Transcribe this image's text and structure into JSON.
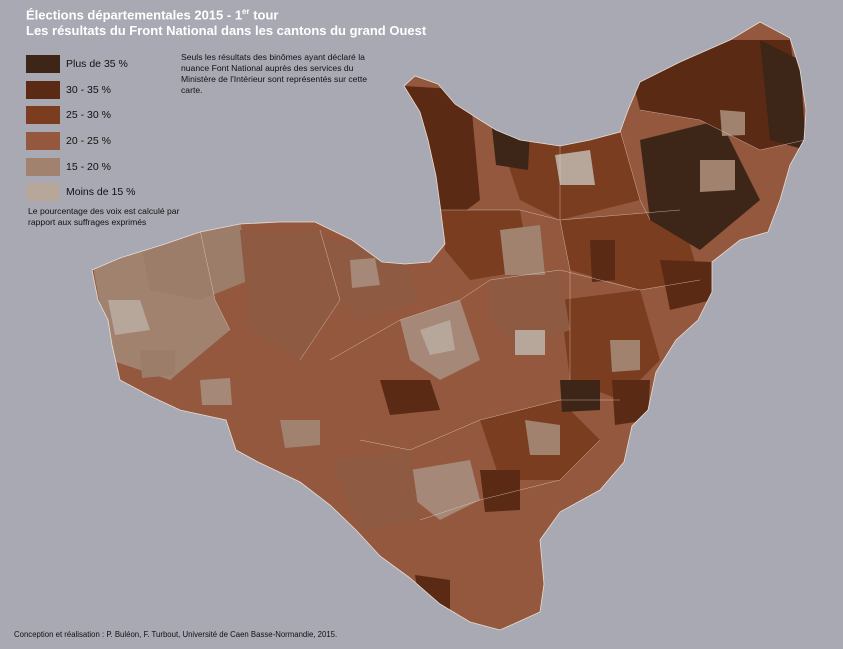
{
  "title": {
    "line1_prefix": "Élections départementales 2015 - 1",
    "line1_sup": "er",
    "line1_suffix": " tour",
    "line2": "Les résultats du Front National dans les cantons du grand Ouest"
  },
  "legend": [
    {
      "label": "Plus de 35 %",
      "color": "#3d2617"
    },
    {
      "label": "30 - 35 %",
      "color": "#5a2a14"
    },
    {
      "label": "25 - 30 %",
      "color": "#7a3d20"
    },
    {
      "label": "20 - 25 %",
      "color": "#93583e"
    },
    {
      "label": "15 - 20 %",
      "color": "#a0826f"
    },
    {
      "label": "Moins de 15 %",
      "color": "#b7a79b"
    }
  ],
  "note": "Seuls les résultats des binômes ayant déclaré la nuance Font National auprès des services du Ministère de l'Intérieur sont représentés sur cette carte.",
  "calc_note": "Le pourcentage des voix est calculé par rapport aux suffrages exprimés",
  "credit": "Conception et réalisation : P. Buléon, F. Turbout, Université de Caen Basse-Normandie, 2015.",
  "map": {
    "background": "#a9a9b3",
    "boundary_color": "#e9dcd2",
    "region_icon": "choropleth-map"
  }
}
